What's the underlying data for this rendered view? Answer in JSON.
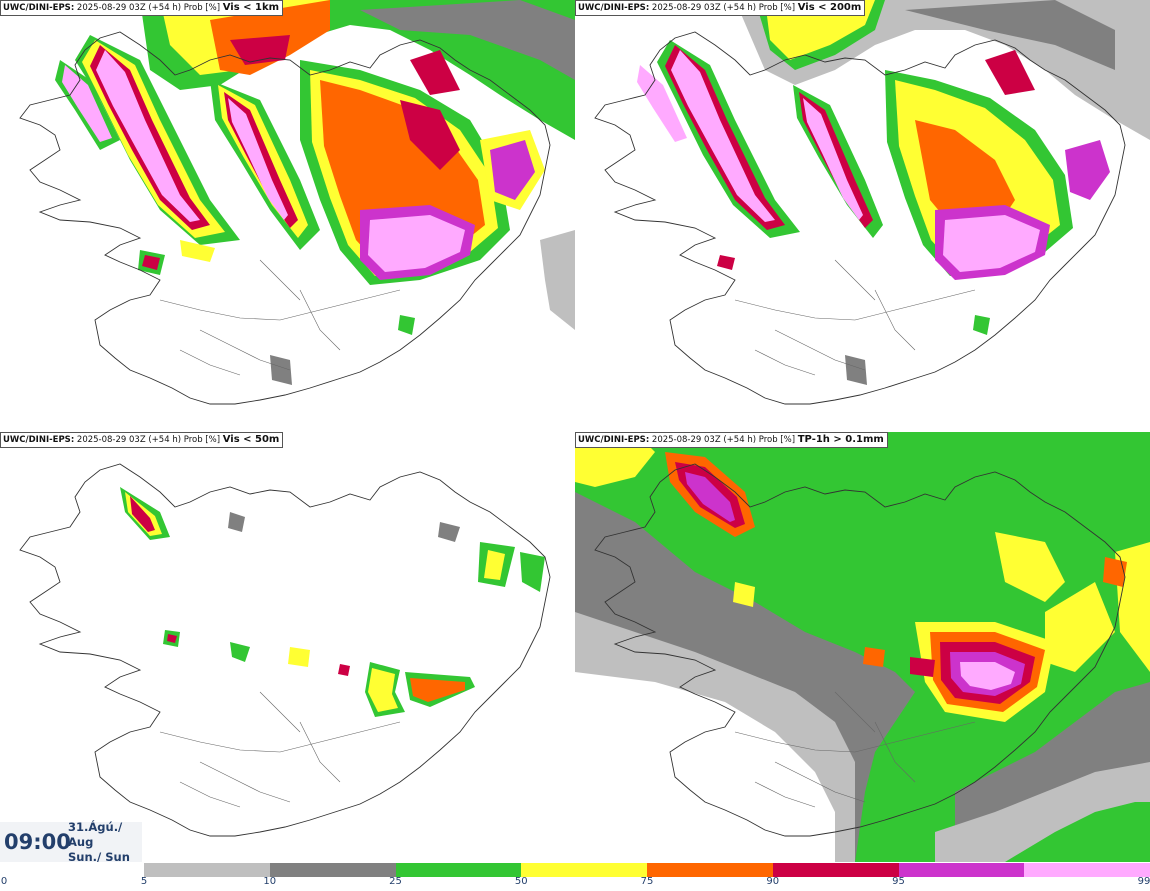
{
  "panels": [
    {
      "product": "UWC/DINI-EPS",
      "meta": "2025-08-29 03Z (+54 h) Prob [%]",
      "variable": "Vis < 1km"
    },
    {
      "product": "UWC/DINI-EPS",
      "meta": "2025-08-29 03Z (+54 h) Prob [%]",
      "variable": "Vis < 200m"
    },
    {
      "product": "UWC/DINI-EPS",
      "meta": "2025-08-29 03Z (+54 h) Prob [%]",
      "variable": "Vis < 50m"
    },
    {
      "product": "UWC/DINI-EPS",
      "meta": "2025-08-29 03Z (+54 h) Prob [%]",
      "variable": "TP-1h > 0.1mm"
    }
  ],
  "valid_time": {
    "time": "09:00",
    "date": "31.Ágú./ Aug",
    "day": "Sun./ Sun"
  },
  "legend": {
    "ticks": [
      "0",
      "5",
      "10",
      "25",
      "50",
      "75",
      "90",
      "95",
      "99"
    ],
    "colors": [
      "#ffffff",
      "#bfbfbf",
      "#808080",
      "#33c633",
      "#ffff33",
      "#ff6600",
      "#cc0044",
      "#cc33cc",
      "#ffaaff"
    ]
  },
  "colors": {
    "light_gray": "#bfbfbf",
    "dark_gray": "#808080",
    "green": "#33c633",
    "yellow": "#ffff33",
    "orange": "#ff6600",
    "red": "#cc0044",
    "magenta": "#cc33cc",
    "pink": "#ffaaff",
    "text_blue": "#233f6b"
  }
}
